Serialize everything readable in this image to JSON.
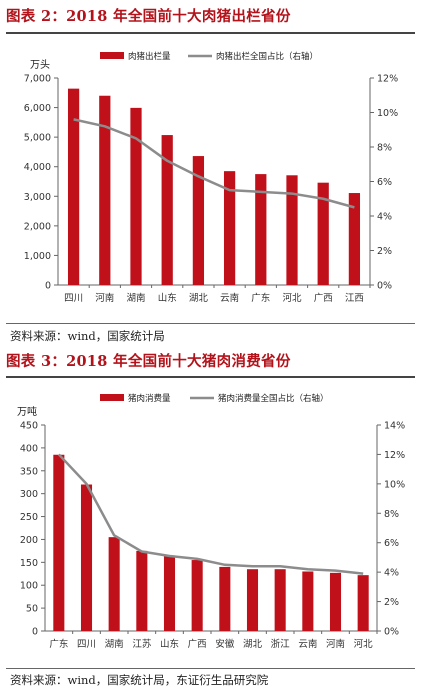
{
  "figures": [
    {
      "title": "图表 2：2018 年全国前十大肉猪出栏省份",
      "source": "资料来源：wind，国家统计局"
    },
    {
      "title": "图表 3：2018 年全国前十大猪肉消费省份",
      "source": "资料来源：wind，国家统计局，东证衍生品研究院"
    }
  ],
  "colors": {
    "bar": "#c0111b",
    "line": "#8c8c8c",
    "title": "#b3121a",
    "axis": "#666666"
  },
  "chart_data": [
    {
      "type": "bar",
      "categories": [
        "四川",
        "河南",
        "湖南",
        "山东",
        "湖北",
        "云南",
        "广东",
        "河北",
        "广西",
        "江西"
      ],
      "series": [
        {
          "name": "肉猪出栏量",
          "type": "bar",
          "axis": "left",
          "values": [
            6640,
            6400,
            5990,
            5070,
            4360,
            3850,
            3750,
            3710,
            3460,
            3110
          ]
        },
        {
          "name": "肉猪出栏全国占比（右轴）",
          "type": "line",
          "axis": "right",
          "values": [
            9.6,
            9.2,
            8.5,
            7.2,
            6.3,
            5.5,
            5.4,
            5.3,
            5.0,
            4.5
          ]
        }
      ],
      "ylabel_left": "万头",
      "ylim_left": [
        0,
        7000
      ],
      "yticks_left": [
        "0",
        "1,000",
        "2,000",
        "3,000",
        "4,000",
        "5,000",
        "6,000",
        "7,000"
      ],
      "ylim_right": [
        0,
        12
      ],
      "yticks_right": [
        "0%",
        "2%",
        "4%",
        "6%",
        "8%",
        "10%",
        "12%"
      ],
      "legend_position": "top",
      "grid": false
    },
    {
      "type": "bar",
      "categories": [
        "广东",
        "四川",
        "湖南",
        "江苏",
        "山东",
        "广西",
        "安徽",
        "湖北",
        "浙江",
        "云南",
        "河南",
        "河北"
      ],
      "series": [
        {
          "name": "猪肉消费量",
          "type": "bar",
          "axis": "left",
          "values": [
            385,
            320,
            205,
            175,
            165,
            155,
            140,
            135,
            135,
            130,
            127,
            122
          ]
        },
        {
          "name": "猪肉消费量全国占比（右轴）",
          "type": "line",
          "axis": "right",
          "values": [
            12.0,
            10.0,
            6.5,
            5.4,
            5.1,
            4.9,
            4.5,
            4.4,
            4.4,
            4.2,
            4.1,
            3.9
          ]
        }
      ],
      "ylabel_left": "万吨",
      "ylim_left": [
        0,
        450
      ],
      "yticks_left": [
        "0",
        "50",
        "100",
        "150",
        "200",
        "250",
        "300",
        "350",
        "400",
        "450"
      ],
      "ylim_right": [
        0,
        14
      ],
      "yticks_right": [
        "0%",
        "2%",
        "4%",
        "6%",
        "8%",
        "10%",
        "12%",
        "14%"
      ],
      "legend_position": "top",
      "grid": false
    }
  ]
}
